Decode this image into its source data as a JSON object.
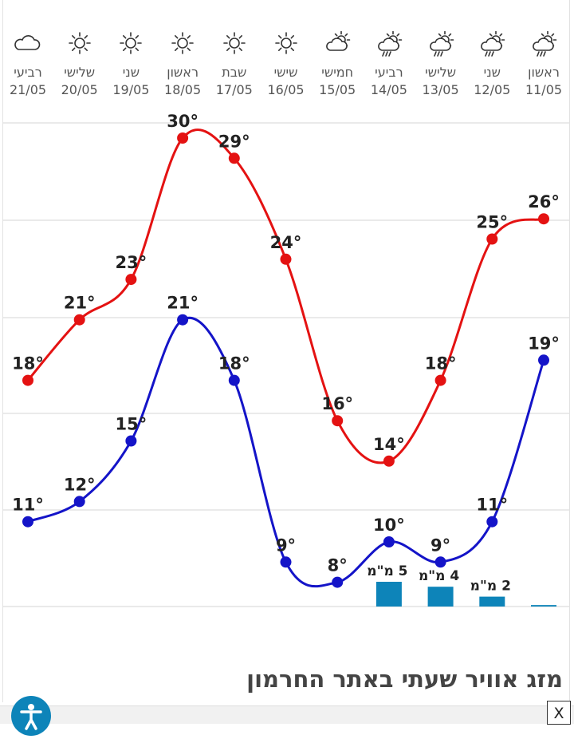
{
  "days": [
    {
      "name": "ראשון",
      "date": "11/05",
      "icon": "rain-sun-icon"
    },
    {
      "name": "שני",
      "date": "12/05",
      "icon": "rain-sun-icon"
    },
    {
      "name": "שלישי",
      "date": "13/05",
      "icon": "rain-sun-icon"
    },
    {
      "name": "רביעי",
      "date": "14/05",
      "icon": "rain-sun-icon"
    },
    {
      "name": "חמישי",
      "date": "15/05",
      "icon": "partly-cloudy-icon"
    },
    {
      "name": "שישי",
      "date": "16/05",
      "icon": "sun-icon"
    },
    {
      "name": "שבת",
      "date": "17/05",
      "icon": "sun-icon"
    },
    {
      "name": "ראשון",
      "date": "18/05",
      "icon": "sun-icon"
    },
    {
      "name": "שני",
      "date": "19/05",
      "icon": "sun-icon"
    },
    {
      "name": "שלישי",
      "date": "20/05",
      "icon": "sun-icon"
    },
    {
      "name": "רביעי",
      "date": "21/05",
      "icon": "cloud-icon"
    }
  ],
  "chart_data": {
    "type": "line",
    "x": [
      "11/05",
      "12/05",
      "13/05",
      "14/05",
      "15/05",
      "16/05",
      "17/05",
      "18/05",
      "19/05",
      "20/05",
      "21/05"
    ],
    "series": [
      {
        "key": "max",
        "values": [
          26,
          25,
          18,
          14,
          16,
          24,
          29,
          30,
          23,
          21,
          18
        ],
        "labels": [
          "26°",
          "25°",
          "18°",
          "14°",
          "16°",
          "24°",
          "29°",
          "30°",
          "23°",
          "21°",
          "18°"
        ],
        "color": "#e41212"
      },
      {
        "key": "min",
        "values": [
          19,
          11,
          9,
          10,
          8,
          9,
          18,
          21,
          15,
          12,
          11
        ],
        "labels": [
          "19°",
          "11°",
          "9°",
          "10°",
          "8°",
          "9°",
          "18°",
          "21°",
          "15°",
          "12°",
          "11°"
        ],
        "color": "#1414c8"
      }
    ],
    "precipitation": {
      "values_mm": [
        0.3,
        2,
        4,
        5
      ],
      "labels": [
        "",
        "2 מ\"מ",
        "4 מ\"מ",
        "5 מ\"מ"
      ],
      "color": "#0d84b9"
    },
    "ylim": [
      0,
      34
    ],
    "grid": true
  },
  "section_title": "מזג אוויר שעתי באתר החרמון",
  "close_label": "X",
  "accessibility": {
    "icon": "accessibility-icon",
    "color": "#0d84b9"
  }
}
